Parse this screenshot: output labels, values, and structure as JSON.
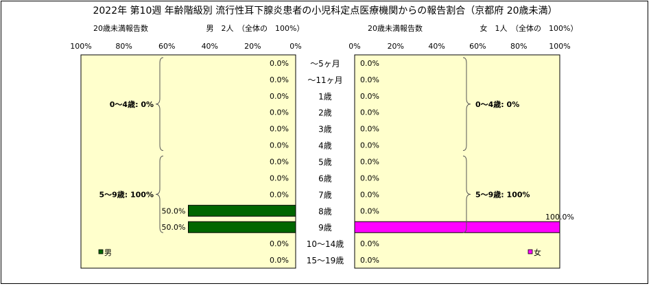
{
  "chart_data": {
    "type": "bar",
    "orientation": "horizontal-butterfly",
    "title": "2022年 第10週 年齢階級別 流行性耳下腺炎患者の小児科定点医療機関からの報告割合（京都府 20歳未満）",
    "categories": [
      "～5ヶ月",
      "～11ヶ月",
      "1歳",
      "2歳",
      "3歳",
      "4歳",
      "5歳",
      "6歳",
      "7歳",
      "8歳",
      "9歳",
      "10～14歳",
      "15～19歳"
    ],
    "xlim": [
      0,
      100
    ],
    "x_ticks": [
      "0%",
      "20%",
      "40%",
      "60%",
      "80%",
      "100%"
    ],
    "grid": false,
    "series": [
      {
        "name": "男",
        "side": "left",
        "header_label": "20歳未満報告数",
        "header_count": "男　2人　（全体の　100%）",
        "color": "#006600",
        "values": [
          0,
          0,
          0,
          0,
          0,
          0,
          0,
          0,
          0,
          50,
          50,
          0,
          0
        ],
        "labels": [
          "0.0%",
          "0.0%",
          "0.0%",
          "0.0%",
          "0.0%",
          "0.0%",
          "0.0%",
          "0.0%",
          "0.0%",
          "50.0%",
          "50.0%",
          "0.0%",
          "0.0%"
        ],
        "brackets": [
          {
            "from": 0,
            "to": 5,
            "text": "0～4歳: 0%"
          },
          {
            "from": 6,
            "to": 10,
            "text": "5～9歳: 100%"
          }
        ],
        "legend": "男"
      },
      {
        "name": "女",
        "side": "right",
        "header_label": "20歳未満報告数",
        "header_count": "女　1人　（全体の　100%）",
        "color": "#ff00ff",
        "values": [
          0,
          0,
          0,
          0,
          0,
          0,
          0,
          0,
          0,
          0,
          100,
          0,
          0
        ],
        "labels": [
          "0.0%",
          "0.0%",
          "0.0%",
          "0.0%",
          "0.0%",
          "0.0%",
          "0.0%",
          "0.0%",
          "0.0%",
          "0.0%",
          "100.0%",
          "0.0%",
          "0.0%"
        ],
        "brackets": [
          {
            "from": 0,
            "to": 5,
            "text": "0～4歳: 0%"
          },
          {
            "from": 6,
            "to": 10,
            "text": "5～9歳: 100%"
          }
        ],
        "legend": "女"
      }
    ],
    "colors": {
      "plot_background": "#ffffcc",
      "bar_outline": "#000000",
      "border": "#000000"
    }
  }
}
